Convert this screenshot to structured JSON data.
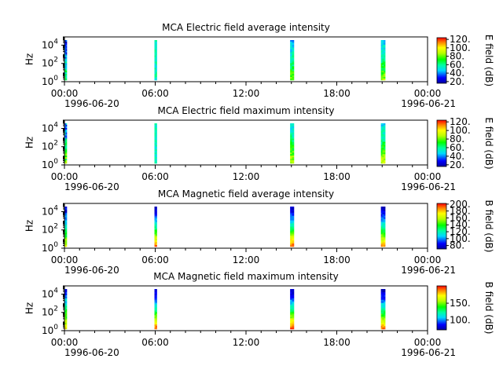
{
  "chart_data": [
    {
      "type": "heatmap",
      "title": "MCA  Electric field average intensity",
      "ylabel": "Hz",
      "y_scale": "log",
      "yticks": [
        {
          "exp": "0"
        },
        {
          "exp": "2"
        },
        {
          "exp": "4"
        }
      ],
      "ylim_hz": [
        1,
        80000
      ],
      "xlim": [
        "1996-06-20 00:00",
        "1996-06-21 00:00"
      ],
      "xticks": [
        "00:00",
        "06:00",
        "12:00",
        "18:00",
        "00:00"
      ],
      "date_labels": [
        "1996-06-20",
        "1996-06-21"
      ],
      "colorbar": {
        "label": "E field (dB)",
        "range": [
          16,
          124
        ],
        "ticks": [
          "20.",
          "40.",
          "60.",
          "80.",
          "100.",
          "120."
        ]
      },
      "intervals": [
        {
          "start": "00:00",
          "end": "00:05",
          "bottom_value": 70,
          "top_value": 25,
          "noise": 0.3
        },
        {
          "start": "05:57",
          "end": "06:05",
          "bottom_value": 55,
          "top_value": 55,
          "noise": 0.15
        },
        {
          "start": "14:55",
          "end": "15:10",
          "bottom_value": 80,
          "top_value": 45,
          "noise": 0.15
        },
        {
          "start": "20:55",
          "end": "21:12",
          "bottom_value": 85,
          "top_value": 45,
          "noise": 0.15
        }
      ]
    },
    {
      "type": "heatmap",
      "title": "MCA  Electric field maximum intensity",
      "ylabel": "Hz",
      "y_scale": "log",
      "yticks": [
        {
          "exp": "0"
        },
        {
          "exp": "2"
        },
        {
          "exp": "4"
        }
      ],
      "ylim_hz": [
        1,
        80000
      ],
      "xlim": [
        "1996-06-20 00:00",
        "1996-06-21 00:00"
      ],
      "xticks": [
        "00:00",
        "06:00",
        "12:00",
        "18:00",
        "00:00"
      ],
      "date_labels": [
        "1996-06-20",
        "1996-06-21"
      ],
      "colorbar": {
        "label": "E field (dB)",
        "range": [
          16,
          124
        ],
        "ticks": [
          "20.",
          "40.",
          "60.",
          "80.",
          "100.",
          "120."
        ]
      },
      "intervals": [
        {
          "start": "00:00",
          "end": "00:05",
          "bottom_value": 80,
          "top_value": 40,
          "noise": 0.3
        },
        {
          "start": "05:57",
          "end": "06:05",
          "bottom_value": 55,
          "top_value": 55,
          "noise": 0.12
        },
        {
          "start": "14:55",
          "end": "15:10",
          "bottom_value": 90,
          "top_value": 50,
          "noise": 0.15
        },
        {
          "start": "20:55",
          "end": "21:12",
          "bottom_value": 90,
          "top_value": 50,
          "noise": 0.15
        }
      ]
    },
    {
      "type": "heatmap",
      "title": "MCA  Magnetic field average intensity",
      "ylabel": "Hz",
      "y_scale": "log",
      "yticks": [
        {
          "exp": "0"
        },
        {
          "exp": "2"
        },
        {
          "exp": "4"
        }
      ],
      "ylim_hz": [
        1,
        80000
      ],
      "xlim": [
        "1996-06-20 00:00",
        "1996-06-21 00:00"
      ],
      "xticks": [
        "00:00",
        "06:00",
        "12:00",
        "18:00",
        "00:00"
      ],
      "date_labels": [
        "1996-06-20",
        "1996-06-21"
      ],
      "colorbar": {
        "label": "B field (dB)",
        "range": [
          70,
          202
        ],
        "ticks": [
          "80.",
          "100.",
          "120.",
          "140.",
          "160.",
          "180.",
          "200."
        ]
      },
      "intervals": [
        {
          "start": "00:00",
          "end": "00:05",
          "bottom_value": 170,
          "top_value": 80,
          "noise": 0.2
        },
        {
          "start": "05:57",
          "end": "06:05",
          "bottom_value": 190,
          "top_value": 75,
          "noise": 0.1
        },
        {
          "start": "14:55",
          "end": "15:10",
          "bottom_value": 195,
          "top_value": 75,
          "noise": 0.1
        },
        {
          "start": "20:55",
          "end": "21:12",
          "bottom_value": 185,
          "top_value": 75,
          "noise": 0.1
        }
      ]
    },
    {
      "type": "heatmap",
      "title": "MCA  Magnetic field maximum intensity",
      "ylabel": "Hz",
      "y_scale": "log",
      "yticks": [
        {
          "exp": "0"
        },
        {
          "exp": "2"
        },
        {
          "exp": "4"
        }
      ],
      "ylim_hz": [
        1,
        80000
      ],
      "xlim": [
        "1996-06-20 00:00",
        "1996-06-21 00:00"
      ],
      "xticks": [
        "00:00",
        "06:00",
        "12:00",
        "18:00",
        "00:00"
      ],
      "date_labels": [
        "1996-06-20",
        "1996-06-21"
      ],
      "colorbar": {
        "label": "B field (dB)",
        "range": [
          70,
          202
        ],
        "ticks": [
          "100.",
          "150."
        ]
      },
      "intervals": [
        {
          "start": "00:00",
          "end": "00:05",
          "bottom_value": 175,
          "top_value": 90,
          "noise": 0.2
        },
        {
          "start": "05:57",
          "end": "06:05",
          "bottom_value": 195,
          "top_value": 75,
          "noise": 0.1
        },
        {
          "start": "14:55",
          "end": "15:10",
          "bottom_value": 198,
          "top_value": 75,
          "noise": 0.1
        },
        {
          "start": "20:55",
          "end": "21:12",
          "bottom_value": 190,
          "top_value": 75,
          "noise": 0.1
        }
      ]
    }
  ]
}
